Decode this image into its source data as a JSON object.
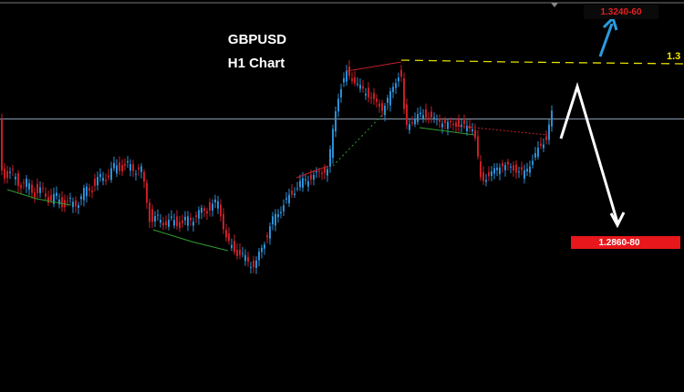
{
  "header": {
    "symbol": "GBPUSD",
    "timeframe": "H1 Chart"
  },
  "labels": {
    "target_up": "1.3240-60",
    "target_down": "1.2860-80",
    "level": "1.3"
  }
}
